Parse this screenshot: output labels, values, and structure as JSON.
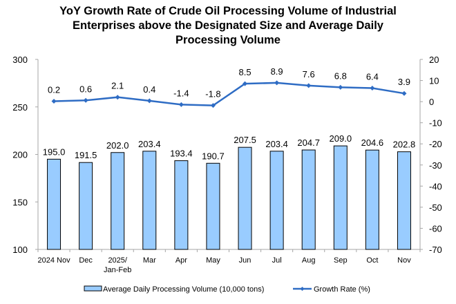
{
  "chart_data": {
    "type": "bar+line",
    "title_lines": [
      "YoY Growth Rate of Crude Oil Processing Volume of Industrial",
      "Enterprises above the Designated Size and Average Daily",
      "Processing Volume"
    ],
    "categories": [
      [
        "2024 Nov"
      ],
      [
        "Dec"
      ],
      [
        "2025/",
        "Jan-Feb"
      ],
      [
        "Mar"
      ],
      [
        "Apr"
      ],
      [
        "May"
      ],
      [
        "Jun"
      ],
      [
        "Jul"
      ],
      [
        "Aug"
      ],
      [
        "Sep"
      ],
      [
        "Oct"
      ],
      [
        "Nov"
      ]
    ],
    "series": [
      {
        "name": "Average Daily Processing Volume (10,000 tons)",
        "type": "bar",
        "axis": "left",
        "color": "#99CCFF",
        "edge": "#000000",
        "values": [
          195.0,
          191.5,
          202.0,
          203.4,
          193.4,
          190.7,
          207.5,
          203.4,
          204.7,
          209.0,
          204.6,
          202.8
        ],
        "labels": [
          "195.0",
          "191.5",
          "202.0",
          "203.4",
          "193.4",
          "190.7",
          "207.5",
          "203.4",
          "204.7",
          "209.0",
          "204.6",
          "202.8"
        ]
      },
      {
        "name": "Growth Rate (%)",
        "type": "line",
        "axis": "right",
        "color": "#2E6CC4",
        "values": [
          0.2,
          0.6,
          2.1,
          0.4,
          -1.4,
          -1.8,
          8.5,
          8.9,
          7.6,
          6.8,
          6.4,
          3.9
        ],
        "labels": [
          "0.2",
          "0.6",
          "2.1",
          "0.4",
          "-1.4",
          "-1.8",
          "8.5",
          "8.9",
          "7.6",
          "6.8",
          "6.4",
          "3.9"
        ]
      }
    ],
    "left_axis": {
      "min": 100,
      "max": 300,
      "ticks": [
        100,
        150,
        200,
        250,
        300
      ]
    },
    "right_axis": {
      "min": -70,
      "max": 20,
      "ticks": [
        -70,
        -60,
        -50,
        -40,
        -30,
        -20,
        -10,
        0,
        10,
        20
      ]
    },
    "grid": false,
    "legend_position": "bottom"
  }
}
